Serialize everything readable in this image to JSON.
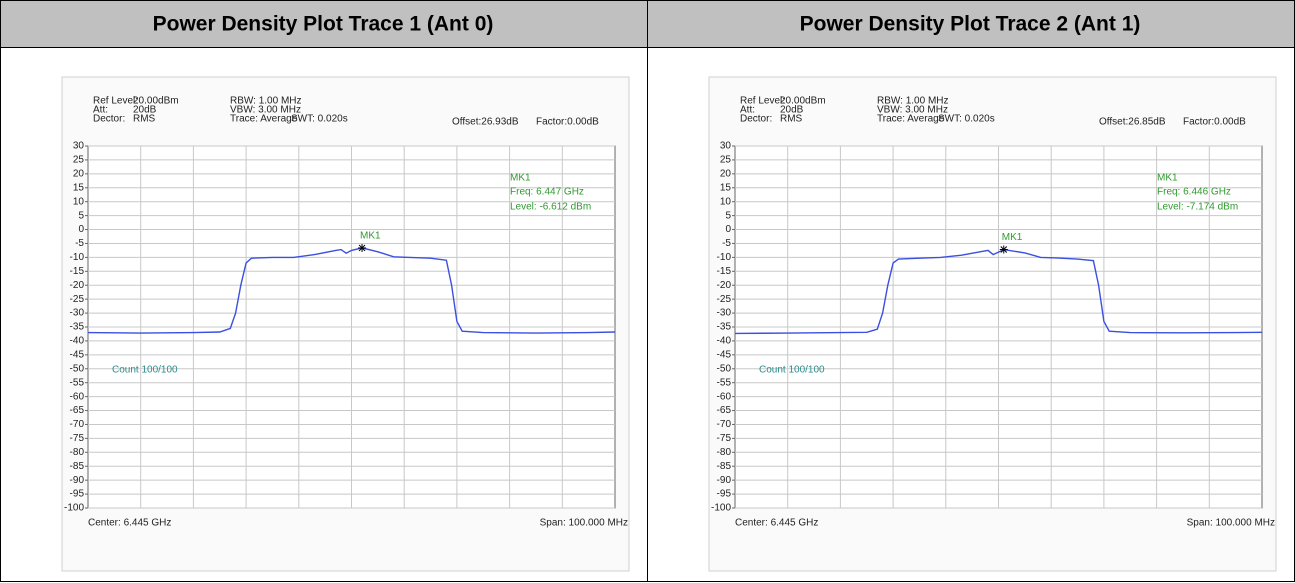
{
  "chart_data": [
    {
      "type": "line",
      "title": "Power Density Plot Trace 1 (Ant 0)",
      "info": {
        "ref_label": "Ref Level:",
        "ref_value": "20.00dBm",
        "att_label": "Att:",
        "att_value": "20dB",
        "det_label": "Dector:",
        "det_value": "RMS",
        "rbw": "RBW: 1.00 MHz",
        "vbw": "VBW: 3.00 MHz",
        "trace": "Trace: Average",
        "swt": "SWT: 0.020s",
        "offset": "Offset:26.93dB",
        "factor": "Factor:0.00dB",
        "count": "Count 100/100",
        "center": "Center: 6.445 GHz",
        "span": "Span: 100.000 MHz"
      },
      "marker": {
        "label": "MK1",
        "x": 6.447,
        "y": -6.612,
        "freq": "Freq: 6.447 GHz",
        "level": "Level: -6.612 dBm"
      },
      "color": "#3b4fe0",
      "x": [
        6.395,
        6.405,
        6.415,
        6.42,
        6.422,
        6.423,
        6.424,
        6.425,
        6.426,
        6.43,
        6.434,
        6.438,
        6.442,
        6.443,
        6.444,
        6.445,
        6.447,
        6.45,
        6.453,
        6.456,
        6.46,
        6.463,
        6.464,
        6.465,
        6.466,
        6.47,
        6.48,
        6.49,
        6.495
      ],
      "values": [
        -37,
        -37.2,
        -37,
        -36.8,
        -35.5,
        -30,
        -20,
        -12,
        -10.3,
        -10,
        -10,
        -9,
        -7.5,
        -7.2,
        -8.5,
        -7.5,
        -6.6,
        -8,
        -9.8,
        -10,
        -10.3,
        -11,
        -20,
        -33,
        -36.5,
        -37,
        -37.2,
        -37,
        -36.8
      ],
      "xlim": [
        6.395,
        6.495
      ],
      "ylim": [
        -100,
        30
      ],
      "yticks": [
        30,
        25,
        20,
        15,
        10,
        5,
        0,
        -5,
        -10,
        -15,
        -20,
        -25,
        -30,
        -35,
        -40,
        -45,
        -50,
        -55,
        -60,
        -65,
        -70,
        -75,
        -80,
        -85,
        -90,
        -95,
        -100
      ]
    },
    {
      "type": "line",
      "title": "Power Density Plot Trace 2 (Ant 1)",
      "info": {
        "ref_label": "Ref Level:",
        "ref_value": "20.00dBm",
        "att_label": "Att:",
        "att_value": "20dB",
        "det_label": "Dector:",
        "det_value": "RMS",
        "rbw": "RBW: 1.00 MHz",
        "vbw": "VBW: 3.00 MHz",
        "trace": "Trace: Average",
        "swt": "SWT: 0.020s",
        "offset": "Offset:26.85dB",
        "factor": "Factor:0.00dB",
        "count": "Count 100/100",
        "center": "Center: 6.445 GHz",
        "span": "Span: 100.000 MHz"
      },
      "marker": {
        "label": "MK1",
        "x": 6.446,
        "y": -7.174,
        "freq": "Freq: 6.446 GHz",
        "level": "Level: -7.174 dBm"
      },
      "color": "#3b4fe0",
      "x": [
        6.395,
        6.405,
        6.415,
        6.42,
        6.422,
        6.423,
        6.424,
        6.425,
        6.426,
        6.43,
        6.434,
        6.438,
        6.442,
        6.443,
        6.444,
        6.446,
        6.45,
        6.453,
        6.456,
        6.46,
        6.463,
        6.464,
        6.465,
        6.466,
        6.47,
        6.48,
        6.49,
        6.495
      ],
      "values": [
        -37.3,
        -37.2,
        -37,
        -36.9,
        -35.8,
        -30,
        -20,
        -12,
        -10.6,
        -10.3,
        -10,
        -9.2,
        -7.8,
        -7.5,
        -9,
        -7.2,
        -8.4,
        -10,
        -10.2,
        -10.6,
        -11.2,
        -20,
        -33,
        -36.5,
        -37,
        -37.1,
        -37,
        -36.9
      ],
      "xlim": [
        6.395,
        6.495
      ],
      "ylim": [
        -100,
        30
      ],
      "yticks": [
        30,
        25,
        20,
        15,
        10,
        5,
        0,
        -5,
        -10,
        -15,
        -20,
        -25,
        -30,
        -35,
        -40,
        -45,
        -50,
        -55,
        -60,
        -65,
        -70,
        -75,
        -80,
        -85,
        -90,
        -95,
        -100
      ]
    }
  ]
}
